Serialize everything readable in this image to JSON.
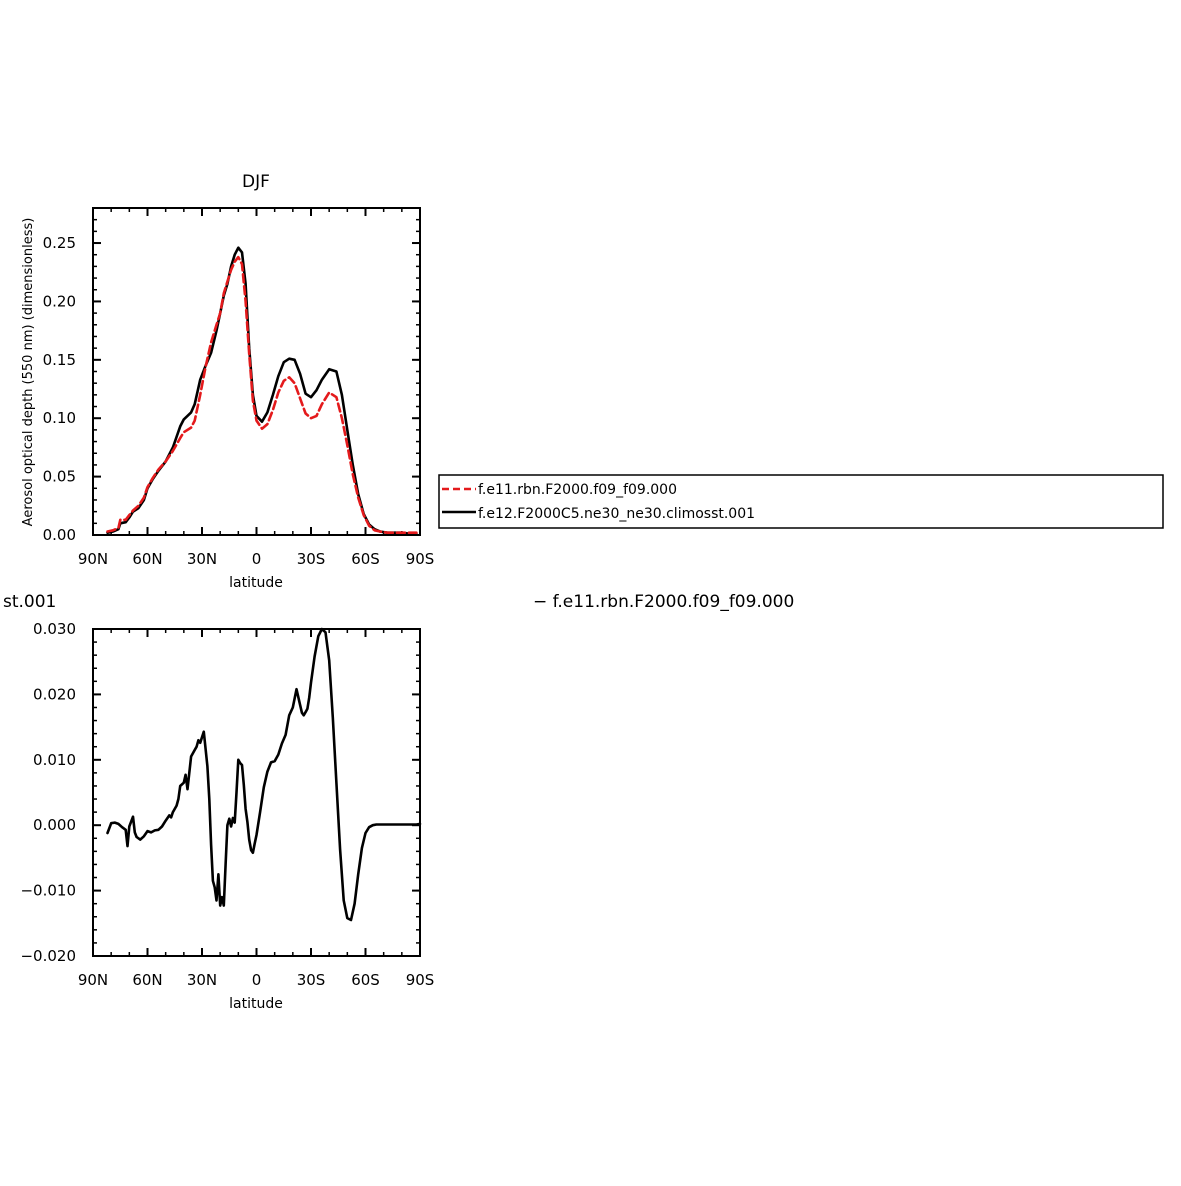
{
  "colors": {
    "series_red": "#e41a1c",
    "series_black": "#000000",
    "axis": "#000000"
  },
  "top_legend": {
    "items": [
      {
        "label": "f.e11.rbn.F2000.f09_f09.000",
        "color": "#e41a1c",
        "style": "dashed"
      },
      {
        "label": "f.e12.F2000C5.ne30_ne30.climosst.001",
        "color": "#000000",
        "style": "solid"
      }
    ]
  },
  "diff_title": {
    "left_text": "st.001",
    "right_text": "− f.e11.rbn.F2000.f09_f09.000"
  },
  "chart_data": [
    {
      "type": "line",
      "title": "DJF",
      "xlabel": "latitude",
      "ylabel": "Aerosol optical depth (550 nm) (dimensionless)",
      "xlim": [
        90,
        -90
      ],
      "ylim": [
        0,
        0.28
      ],
      "x_ticks": [
        90,
        60,
        30,
        0,
        -30,
        -60,
        -90
      ],
      "x_tick_labels": [
        "90N",
        "60N",
        "30N",
        "0",
        "30S",
        "60S",
        "90S"
      ],
      "y_ticks": [
        0,
        0.05,
        0.1,
        0.15,
        0.2,
        0.25
      ],
      "y_tick_labels": [
        "0.00",
        "0.05",
        "0.10",
        "0.15",
        "0.20",
        "0.25"
      ],
      "grid": false,
      "legend_placement": "right",
      "series": [
        {
          "name": "f.e11.rbn.F2000.f09_f09.000",
          "color": "#e41a1c",
          "dash": true,
          "x": [
            82,
            79,
            76,
            75,
            72,
            70,
            68,
            65,
            62,
            60,
            57,
            54,
            50,
            46,
            42,
            40,
            36,
            34,
            31,
            28,
            25,
            22,
            20,
            18,
            16,
            14,
            12,
            10,
            8,
            6,
            4,
            2,
            0,
            -3,
            -6,
            -9,
            -12,
            -15,
            -18,
            -21,
            -24,
            -27,
            -30,
            -33,
            -36,
            -40,
            -44,
            -47,
            -50,
            -53,
            -56,
            -59,
            -62,
            -65,
            -68,
            -72,
            -76,
            -80,
            -85,
            -88
          ],
          "y": [
            0.003,
            0.004,
            0.006,
            0.013,
            0.013,
            0.017,
            0.021,
            0.025,
            0.032,
            0.041,
            0.049,
            0.056,
            0.063,
            0.072,
            0.083,
            0.088,
            0.092,
            0.098,
            0.12,
            0.144,
            0.165,
            0.18,
            0.19,
            0.207,
            0.217,
            0.227,
            0.234,
            0.238,
            0.232,
            0.2,
            0.155,
            0.115,
            0.098,
            0.091,
            0.095,
            0.107,
            0.122,
            0.132,
            0.135,
            0.13,
            0.117,
            0.104,
            0.1,
            0.102,
            0.112,
            0.122,
            0.118,
            0.1,
            0.077,
            0.052,
            0.032,
            0.017,
            0.008,
            0.004,
            0.003,
            0.002,
            0.002,
            0.002,
            0.002,
            0.002
          ]
        },
        {
          "name": "f.e12.F2000C5.ne30_ne30.climosst.001",
          "color": "#000000",
          "dash": false,
          "x": [
            82,
            79,
            76,
            75,
            72,
            70,
            68,
            65,
            62,
            60,
            57,
            54,
            50,
            46,
            42,
            40,
            36,
            34,
            31,
            28,
            25,
            22,
            20,
            18,
            16,
            14,
            12,
            10,
            8,
            6,
            4,
            2,
            0,
            -3,
            -6,
            -9,
            -12,
            -15,
            -18,
            -21,
            -24,
            -27,
            -30,
            -33,
            -36,
            -40,
            -44,
            -47,
            -50,
            -53,
            -56,
            -59,
            -62,
            -65,
            -68,
            -72,
            -76,
            -80,
            -85,
            -88
          ],
          "y": [
            0.002,
            0.003,
            0.005,
            0.01,
            0.011,
            0.015,
            0.02,
            0.023,
            0.03,
            0.04,
            0.048,
            0.055,
            0.063,
            0.075,
            0.093,
            0.099,
            0.105,
            0.112,
            0.133,
            0.145,
            0.156,
            0.175,
            0.19,
            0.205,
            0.215,
            0.23,
            0.24,
            0.246,
            0.242,
            0.215,
            0.16,
            0.12,
            0.102,
            0.097,
            0.105,
            0.12,
            0.136,
            0.148,
            0.151,
            0.15,
            0.138,
            0.121,
            0.118,
            0.124,
            0.133,
            0.142,
            0.14,
            0.12,
            0.09,
            0.06,
            0.035,
            0.018,
            0.009,
            0.005,
            0.003,
            0.002,
            0.002,
            0.002,
            0.001,
            0.001
          ]
        }
      ]
    },
    {
      "type": "line",
      "title": "",
      "xlabel": "latitude",
      "ylabel": "",
      "xlim": [
        90,
        -90
      ],
      "ylim": [
        -0.02,
        0.03
      ],
      "x_ticks": [
        90,
        60,
        30,
        0,
        -30,
        -60,
        -90
      ],
      "x_tick_labels": [
        "90N",
        "60N",
        "30N",
        "0",
        "30S",
        "60S",
        "90S"
      ],
      "y_ticks": [
        -0.02,
        -0.01,
        0,
        0.01,
        0.02,
        0.03
      ],
      "y_tick_labels": [
        "−0.020",
        "−0.010",
        "0.000",
        "0.010",
        "0.020",
        "0.030"
      ],
      "grid": false,
      "series": [
        {
          "color": "#000000",
          "dash": false,
          "x": [
            82,
            80,
            78,
            76,
            74,
            72,
            71,
            70,
            68,
            67,
            66,
            64,
            62,
            60,
            58,
            56,
            54,
            52,
            50,
            48,
            47,
            46,
            44,
            43,
            42,
            40,
            39,
            38,
            36,
            34,
            33,
            32,
            31,
            29,
            27,
            26,
            25,
            24,
            23,
            22,
            21,
            20,
            19,
            18,
            17,
            16,
            15,
            14,
            13,
            12,
            11,
            10,
            9,
            8,
            7,
            6,
            5,
            4,
            3,
            2,
            1,
            0,
            -2,
            -4,
            -6,
            -8,
            -10,
            -12,
            -14,
            -16,
            -18,
            -20,
            -22,
            -24,
            -25,
            -26,
            -27,
            -28,
            -29,
            -30,
            -32,
            -34,
            -36,
            -38,
            -40,
            -42,
            -44,
            -46,
            -48,
            -50,
            -52,
            -54,
            -56,
            -58,
            -60,
            -62,
            -64,
            -66,
            -68,
            -70,
            -72,
            -74,
            -76,
            -78,
            -80,
            -84,
            -88,
            -90
          ],
          "y": [
            -0.0012,
            0.0003,
            0.0004,
            0.0002,
            -0.0003,
            -0.0007,
            -0.0032,
            -0.0002,
            0.0013,
            -0.0011,
            -0.0018,
            -0.0022,
            -0.0017,
            -0.0009,
            -0.0011,
            -0.0008,
            -0.0007,
            -0.0002,
            0.0007,
            0.0015,
            0.0012,
            0.002,
            0.003,
            0.004,
            0.006,
            0.0065,
            0.0077,
            0.0055,
            0.0105,
            0.0115,
            0.012,
            0.013,
            0.0126,
            0.0143,
            0.009,
            0.004,
            -0.003,
            -0.0085,
            -0.0095,
            -0.0115,
            -0.0075,
            -0.0123,
            -0.011,
            -0.0123,
            -0.006,
            0.0,
            0.001,
            -0.0002,
            0.0011,
            0.0004,
            0.005,
            0.01,
            0.0095,
            0.0092,
            0.0062,
            0.0025,
            0.0005,
            -0.0022,
            -0.0038,
            -0.0042,
            -0.0028,
            -0.0015,
            0.002,
            0.0058,
            0.0082,
            0.0096,
            0.0098,
            0.0108,
            0.0125,
            0.0138,
            0.0168,
            0.018,
            0.0208,
            0.0184,
            0.0172,
            0.0168,
            0.0173,
            0.0178,
            0.0195,
            0.0218,
            0.0258,
            0.0289,
            0.03,
            0.0295,
            0.0252,
            0.0165,
            0.0065,
            -0.0037,
            -0.0115,
            -0.0142,
            -0.0145,
            -0.012,
            -0.0075,
            -0.0035,
            -0.0012,
            -0.0003,
            0.0,
            0.0001,
            0.0001,
            0.0001,
            0.0001,
            0.0001,
            0.0001,
            0.0001,
            0.0001,
            0.0001,
            0.0001,
            0.0002
          ]
        }
      ]
    }
  ]
}
